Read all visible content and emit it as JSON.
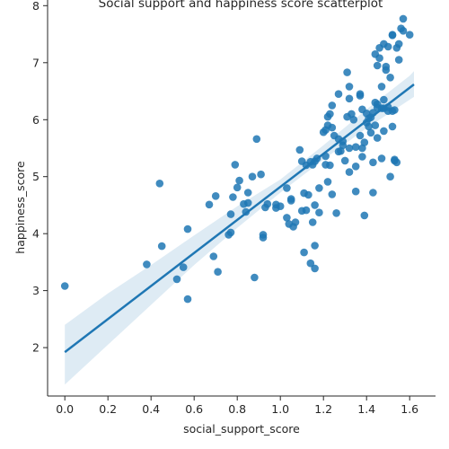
{
  "chart_data": {
    "type": "scatter",
    "title": "Social support and happiness score scatterplot",
    "xlabel": "social_support_score",
    "ylabel": "happiness_score",
    "xlim": [
      -0.08,
      1.72
    ],
    "ylim": [
      1.15,
      8.1
    ],
    "xticks": [
      0.0,
      0.2,
      0.4,
      0.6,
      0.8,
      1.0,
      1.2,
      1.4,
      1.6
    ],
    "xtick_labels": [
      "0.0",
      "0.2",
      "0.4",
      "0.6",
      "0.8",
      "1.0",
      "1.2",
      "1.4",
      "1.6"
    ],
    "yticks": [
      2,
      3,
      4,
      5,
      6,
      7,
      8
    ],
    "ytick_labels": [
      "2",
      "3",
      "4",
      "5",
      "6",
      "7",
      "8"
    ],
    "grid": false,
    "point_color": "#1f77b4",
    "line_color": "#1f77b4",
    "band_color": "#1f77b4",
    "regression": {
      "x_start": 0.0,
      "x_end": 1.62,
      "intercept": 1.92,
      "slope": 2.9,
      "ci_at_x": [
        0.0,
        0.2,
        0.4,
        0.6,
        0.8,
        1.0,
        1.2,
        1.4,
        1.6,
        1.62
      ],
      "ci_lower": [
        1.35,
        2.05,
        2.75,
        3.45,
        4.1,
        4.72,
        5.3,
        5.85,
        6.35,
        6.4
      ],
      "ci_upper": [
        2.4,
        2.95,
        3.45,
        3.97,
        4.48,
        4.95,
        5.55,
        6.18,
        6.77,
        6.85
      ]
    },
    "points": [
      [
        0.0,
        3.08
      ],
      [
        0.38,
        3.46
      ],
      [
        0.44,
        4.88
      ],
      [
        0.45,
        3.78
      ],
      [
        0.52,
        3.2
      ],
      [
        0.55,
        3.41
      ],
      [
        0.57,
        4.08
      ],
      [
        0.57,
        2.85
      ],
      [
        0.67,
        4.51
      ],
      [
        0.69,
        3.6
      ],
      [
        0.7,
        4.66
      ],
      [
        0.71,
        3.33
      ],
      [
        0.76,
        3.98
      ],
      [
        0.77,
        4.34
      ],
      [
        0.77,
        4.02
      ],
      [
        0.78,
        4.64
      ],
      [
        0.79,
        5.21
      ],
      [
        0.8,
        4.81
      ],
      [
        0.81,
        4.93
      ],
      [
        0.83,
        4.52
      ],
      [
        0.84,
        4.38
      ],
      [
        0.85,
        4.54
      ],
      [
        0.85,
        4.72
      ],
      [
        0.87,
        5.0
      ],
      [
        0.88,
        3.23
      ],
      [
        0.89,
        5.66
      ],
      [
        0.91,
        5.04
      ],
      [
        0.92,
        3.93
      ],
      [
        0.92,
        3.98
      ],
      [
        0.93,
        4.46
      ],
      [
        0.94,
        4.52
      ],
      [
        0.98,
        4.51
      ],
      [
        0.98,
        4.45
      ],
      [
        1.0,
        4.48
      ],
      [
        1.03,
        4.8
      ],
      [
        1.03,
        4.28
      ],
      [
        1.04,
        4.17
      ],
      [
        1.05,
        4.58
      ],
      [
        1.05,
        4.61
      ],
      [
        1.06,
        4.12
      ],
      [
        1.07,
        4.2
      ],
      [
        1.09,
        5.47
      ],
      [
        1.1,
        4.4
      ],
      [
        1.1,
        5.27
      ],
      [
        1.11,
        3.67
      ],
      [
        1.11,
        4.71
      ],
      [
        1.12,
        5.2
      ],
      [
        1.12,
        4.41
      ],
      [
        1.13,
        4.68
      ],
      [
        1.14,
        5.26
      ],
      [
        1.14,
        3.48
      ],
      [
        1.15,
        4.2
      ],
      [
        1.15,
        5.21
      ],
      [
        1.16,
        5.27
      ],
      [
        1.16,
        3.79
      ],
      [
        1.16,
        3.39
      ],
      [
        1.16,
        4.5
      ],
      [
        1.17,
        5.32
      ],
      [
        1.18,
        4.8
      ],
      [
        1.18,
        4.37
      ],
      [
        1.2,
        5.78
      ],
      [
        1.21,
        5.36
      ],
      [
        1.21,
        5.21
      ],
      [
        1.22,
        6.05
      ],
      [
        1.22,
        5.9
      ],
      [
        1.22,
        4.91
      ],
      [
        1.23,
        5.2
      ],
      [
        1.23,
        6.1
      ],
      [
        1.24,
        6.25
      ],
      [
        1.24,
        5.86
      ],
      [
        1.24,
        4.69
      ],
      [
        1.25,
        5.72
      ],
      [
        1.26,
        4.36
      ],
      [
        1.27,
        6.45
      ],
      [
        1.27,
        5.66
      ],
      [
        1.27,
        5.44
      ],
      [
        1.28,
        5.45
      ],
      [
        1.29,
        5.62
      ],
      [
        1.3,
        5.28
      ],
      [
        1.31,
        6.83
      ],
      [
        1.31,
        6.05
      ],
      [
        1.32,
        6.58
      ],
      [
        1.32,
        6.37
      ],
      [
        1.32,
        5.5
      ],
      [
        1.32,
        5.08
      ],
      [
        1.33,
        6.1
      ],
      [
        1.34,
        6.0
      ],
      [
        1.35,
        5.52
      ],
      [
        1.35,
        4.74
      ],
      [
        1.35,
        5.18
      ],
      [
        1.37,
        6.45
      ],
      [
        1.37,
        6.42
      ],
      [
        1.37,
        5.72
      ],
      [
        1.38,
        5.5
      ],
      [
        1.38,
        6.18
      ],
      [
        1.38,
        5.35
      ],
      [
        1.39,
        5.6
      ],
      [
        1.39,
        4.32
      ],
      [
        1.4,
        6.11
      ],
      [
        1.4,
        5.95
      ],
      [
        1.41,
        5.88
      ],
      [
        1.42,
        5.77
      ],
      [
        1.42,
        6.04
      ],
      [
        1.43,
        4.72
      ],
      [
        1.43,
        5.25
      ],
      [
        1.44,
        7.15
      ],
      [
        1.44,
        6.3
      ],
      [
        1.45,
        6.95
      ],
      [
        1.45,
        6.21
      ],
      [
        1.45,
        5.68
      ],
      [
        1.45,
        6.27
      ],
      [
        1.46,
        7.08
      ],
      [
        1.46,
        7.26
      ],
      [
        1.47,
        6.58
      ],
      [
        1.47,
        6.2
      ],
      [
        1.47,
        5.32
      ],
      [
        1.48,
        7.33
      ],
      [
        1.48,
        6.35
      ],
      [
        1.48,
        6.2
      ],
      [
        1.48,
        5.8
      ],
      [
        1.49,
        6.87
      ],
      [
        1.49,
        6.93
      ],
      [
        1.5,
        7.28
      ],
      [
        1.5,
        6.15
      ],
      [
        1.51,
        5.0
      ],
      [
        1.51,
        6.74
      ],
      [
        1.52,
        7.48
      ],
      [
        1.52,
        7.49
      ],
      [
        1.52,
        5.88
      ],
      [
        1.52,
        6.15
      ],
      [
        1.53,
        6.17
      ],
      [
        1.53,
        5.28
      ],
      [
        1.54,
        5.25
      ],
      [
        1.54,
        7.26
      ],
      [
        1.55,
        7.33
      ],
      [
        1.56,
        7.6
      ],
      [
        1.57,
        7.56
      ],
      [
        1.57,
        7.77
      ],
      [
        1.6,
        7.49
      ],
      [
        1.41,
        6.02
      ],
      [
        1.43,
        6.12
      ],
      [
        1.5,
        6.22
      ],
      [
        1.53,
        5.3
      ],
      [
        1.44,
        5.9
      ],
      [
        1.55,
        7.05
      ],
      [
        1.29,
        5.55
      ],
      [
        1.21,
        5.82
      ]
    ]
  }
}
